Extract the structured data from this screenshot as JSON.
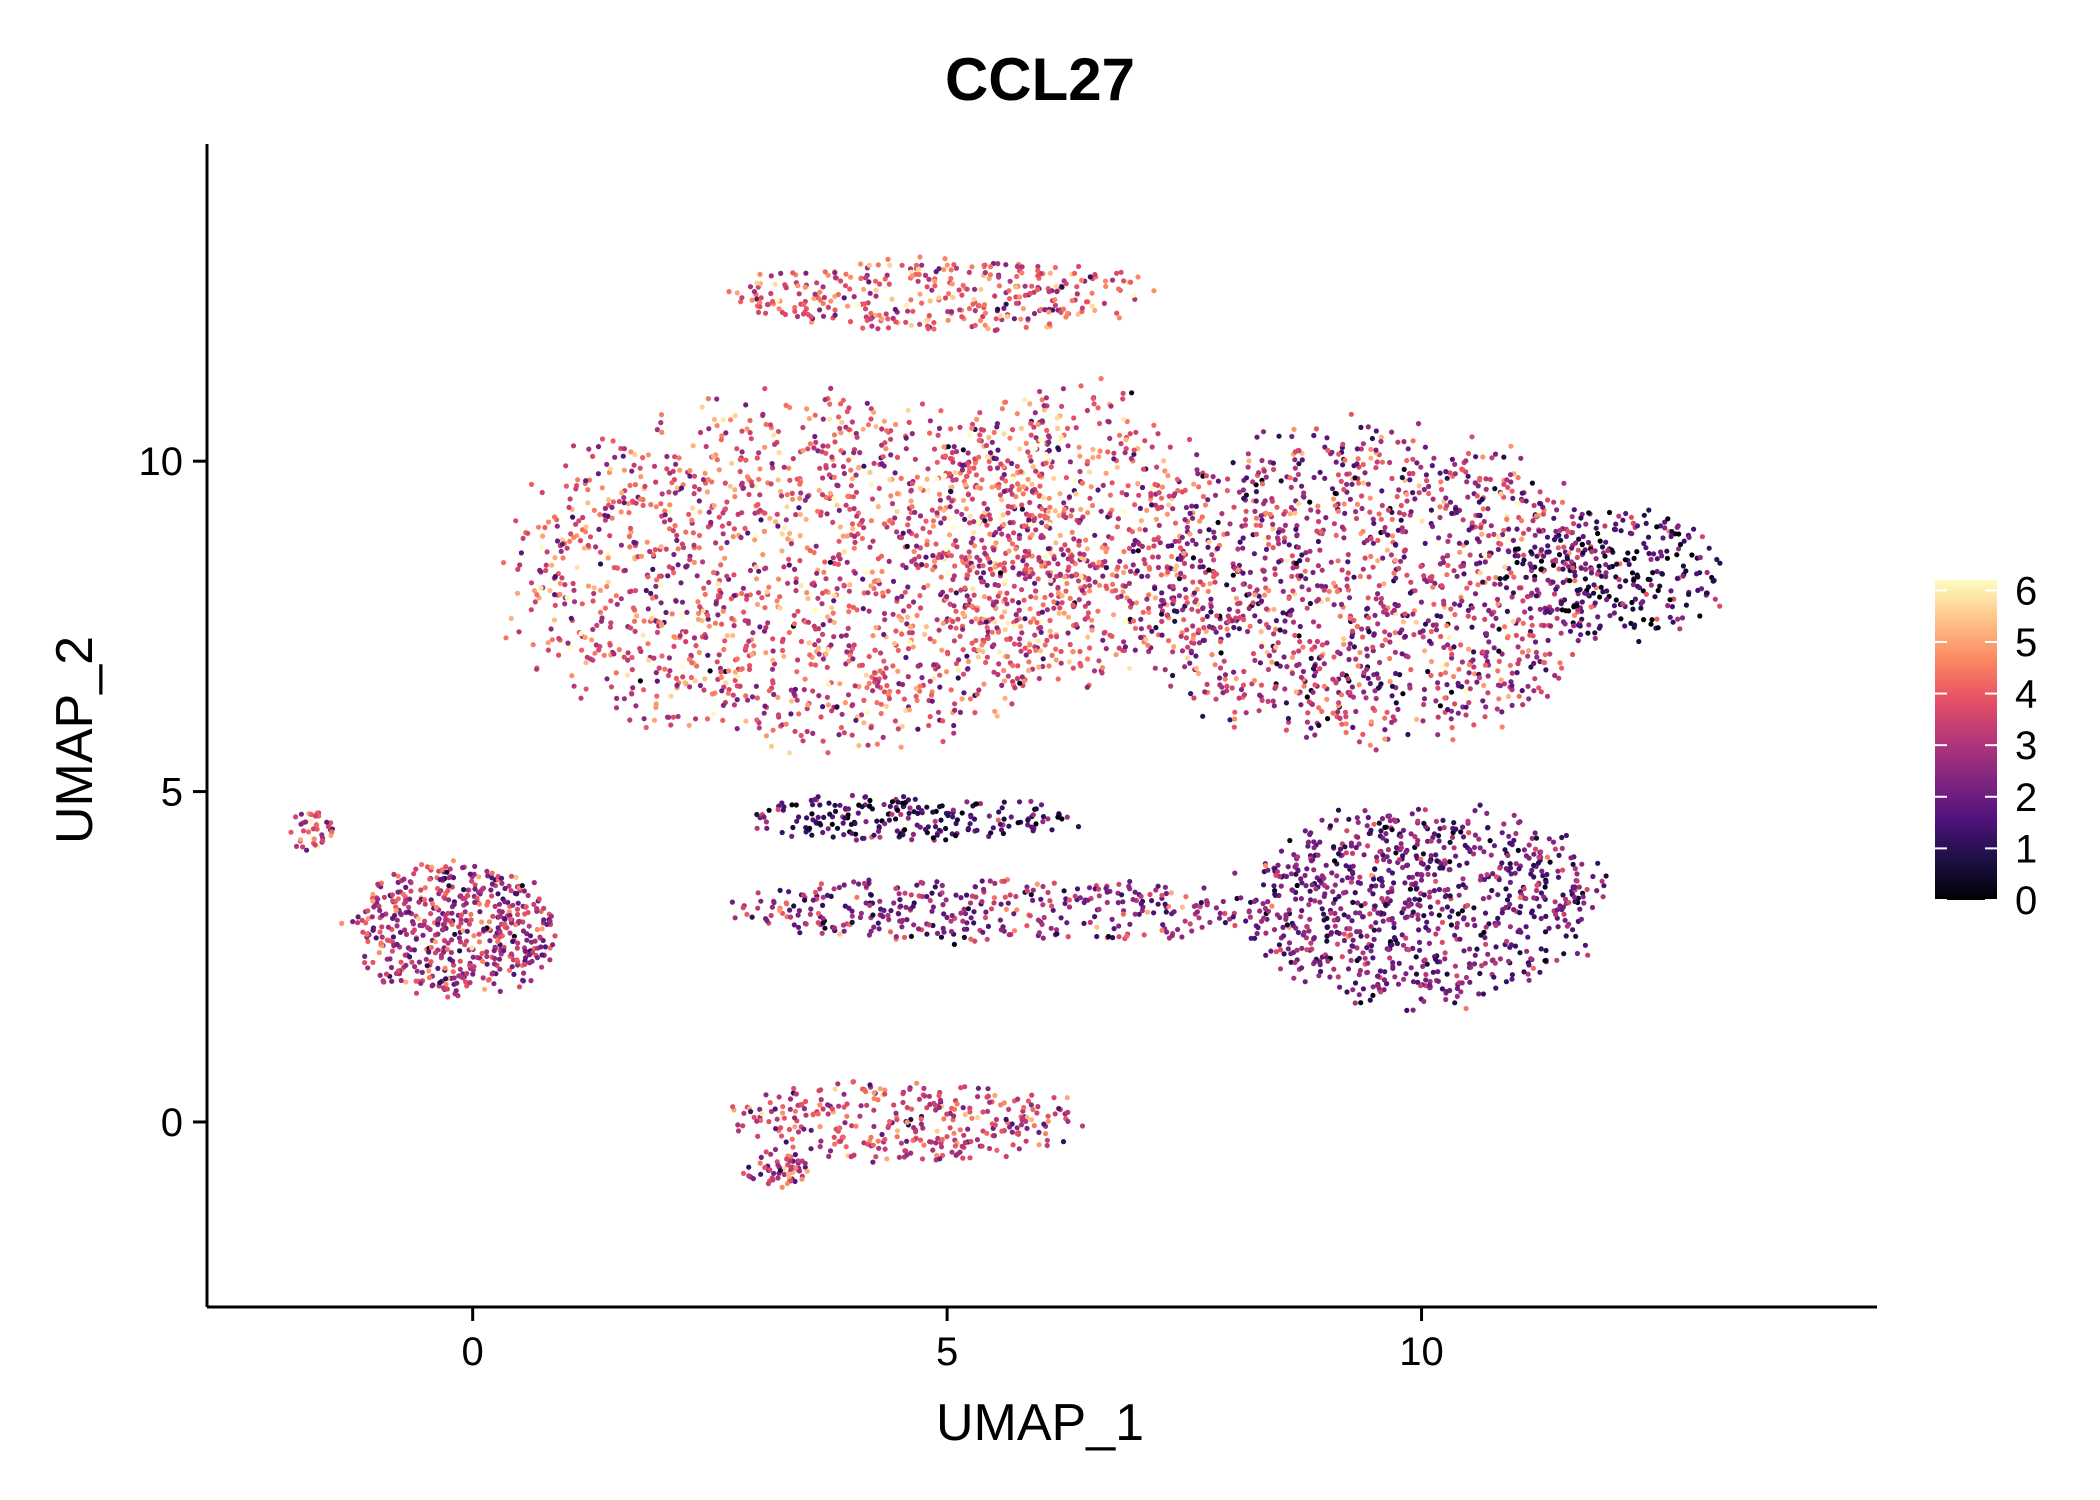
{
  "chart_data": {
    "type": "scatter",
    "title": "CCL27",
    "xlabel": "UMAP_1",
    "ylabel": "UMAP_2",
    "xlim": [
      -2.8,
      14.8
    ],
    "ylim": [
      -2.8,
      14.8
    ],
    "x_ticks": [
      0,
      5,
      10
    ],
    "y_ticks": [
      0,
      5,
      10
    ],
    "grid": false,
    "legend": {
      "position": "right",
      "type": "colorbar",
      "ticks": [
        0,
        1,
        2,
        3,
        4,
        5,
        6
      ],
      "range": [
        0,
        6.2
      ],
      "colors": [
        "#000004",
        "#1c1044",
        "#4f127b",
        "#812581",
        "#b5367a",
        "#e55064",
        "#fb8761",
        "#fec287",
        "#fcfdbf"
      ]
    },
    "clusters": [
      {
        "name": "main-left",
        "cx": 3.6,
        "cy": 8.3,
        "rx": 3.2,
        "ry": 2.6,
        "n": 1700,
        "mean": 3.8,
        "sd": 1.1
      },
      {
        "name": "main-top-arc",
        "cx": 4.9,
        "cy": 12.5,
        "rx": 2.2,
        "ry": 0.55,
        "n": 360,
        "mean": 3.9,
        "sd": 1.0
      },
      {
        "name": "main-center",
        "cx": 6.2,
        "cy": 8.9,
        "rx": 1.6,
        "ry": 2.3,
        "n": 600,
        "mean": 3.7,
        "sd": 1.2
      },
      {
        "name": "main-right",
        "cx": 9.4,
        "cy": 8.1,
        "rx": 2.5,
        "ry": 2.4,
        "n": 1400,
        "mean": 3.0,
        "sd": 1.3
      },
      {
        "name": "right-tip",
        "cx": 12.0,
        "cy": 8.3,
        "rx": 1.2,
        "ry": 1.0,
        "n": 300,
        "mean": 1.5,
        "sd": 1.1
      },
      {
        "name": "lower-arc",
        "cx": 4.6,
        "cy": 4.6,
        "rx": 1.8,
        "ry": 0.35,
        "n": 220,
        "mean": 1.4,
        "sd": 1.0
      },
      {
        "name": "lower-right",
        "cx": 10.0,
        "cy": 3.3,
        "rx": 1.9,
        "ry": 1.5,
        "n": 900,
        "mean": 2.1,
        "sd": 0.9
      },
      {
        "name": "mid-band",
        "cx": 5.5,
        "cy": 3.2,
        "rx": 2.8,
        "ry": 0.5,
        "n": 380,
        "mean": 2.6,
        "sd": 1.0
      },
      {
        "name": "left-island",
        "cx": -0.2,
        "cy": 2.9,
        "rx": 1.1,
        "ry": 1.0,
        "n": 550,
        "mean": 3.1,
        "sd": 1.1
      },
      {
        "name": "left-tail",
        "cx": -1.7,
        "cy": 4.4,
        "rx": 0.25,
        "ry": 0.35,
        "n": 40,
        "mean": 3.6,
        "sd": 0.9
      },
      {
        "name": "bottom-island",
        "cx": 4.6,
        "cy": 0.0,
        "rx": 1.9,
        "ry": 0.6,
        "n": 330,
        "mean": 3.5,
        "sd": 1.0
      },
      {
        "name": "bottom-tip",
        "cx": 3.2,
        "cy": -0.7,
        "rx": 0.35,
        "ry": 0.3,
        "n": 60,
        "mean": 3.2,
        "sd": 1.0
      }
    ]
  }
}
